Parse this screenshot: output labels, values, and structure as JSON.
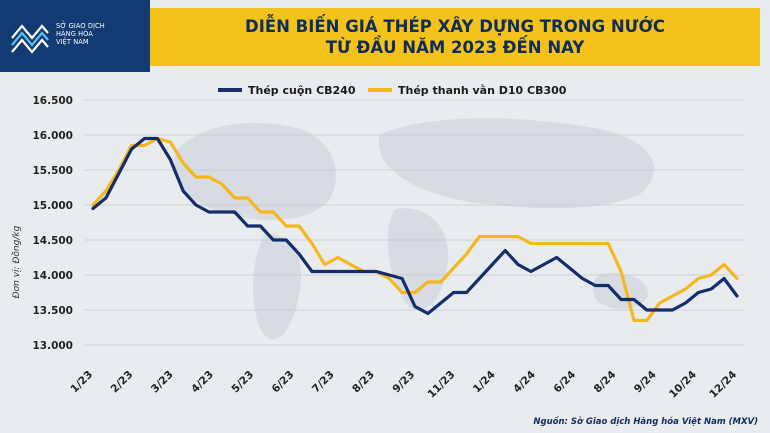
{
  "header": {
    "logo_lines": [
      "SỞ GIAO DỊCH",
      "HÀNG HÓA",
      "VIỆT NAM"
    ],
    "title_line1": "DIỄN BIẾN GIÁ THÉP XÂY DỰNG TRONG NƯỚC",
    "title_line2": "TỪ ĐẦU NĂM 2023 ĐẾN NAY"
  },
  "source": "Nguồn: Sở Giao dịch Hàng hóa Việt Nam (MXV)",
  "colors": {
    "series1": "#142d6b",
    "series2": "#f6b61e",
    "title_band": "#f5c21b",
    "logo_bg": "#123a73"
  },
  "chart_data": {
    "type": "line",
    "ylabel": "Đơn vị: Đồng/kg",
    "ylim": [
      13000,
      16500
    ],
    "yticks": [
      13000,
      13500,
      14000,
      14500,
      15000,
      15500,
      16000,
      16500
    ],
    "ytick_labels": [
      "13.000",
      "13.500",
      "14.000",
      "14.500",
      "15.000",
      "15.500",
      "16.000",
      "16.500"
    ],
    "xtick_labels": [
      "1/23",
      "2/23",
      "3/23",
      "4/23",
      "5/23",
      "6/23",
      "7/23",
      "8/23",
      "9/23",
      "11/23",
      "1/24",
      "4/24",
      "6/24",
      "8/24",
      "9/24",
      "10/24",
      "12/24"
    ],
    "legend_position": "top",
    "grid": "horizontal",
    "series": [
      {
        "name": "Thép cuộn CB240",
        "values": [
          14950,
          15100,
          15450,
          15800,
          15950,
          15950,
          15650,
          15200,
          15000,
          14900,
          14900,
          14900,
          14700,
          14700,
          14500,
          14500,
          14300,
          14050,
          14050,
          14050,
          14050,
          14050,
          14050,
          14000,
          13950,
          13550,
          13450,
          13600,
          13750,
          13750,
          13950,
          14150,
          14350,
          14150,
          14050,
          14150,
          14250,
          14100,
          13950,
          13850,
          13850,
          13650,
          13650,
          13500,
          13500,
          13500,
          13600,
          13750,
          13800,
          13950,
          13700
        ]
      },
      {
        "name": "Thép thanh vằn D10 CB300",
        "values": [
          15000,
          15200,
          15500,
          15850,
          15850,
          15950,
          15900,
          15600,
          15400,
          15400,
          15300,
          15100,
          15100,
          14900,
          14900,
          14700,
          14700,
          14450,
          14150,
          14250,
          14150,
          14050,
          14050,
          13950,
          13750,
          13750,
          13900,
          13900,
          14100,
          14300,
          14550,
          14550,
          14550,
          14550,
          14450,
          14450,
          14450,
          14450,
          14450,
          14450,
          14450,
          14050,
          13350,
          13350,
          13600,
          13700,
          13800,
          13950,
          14000,
          14150,
          13950
        ]
      }
    ]
  }
}
